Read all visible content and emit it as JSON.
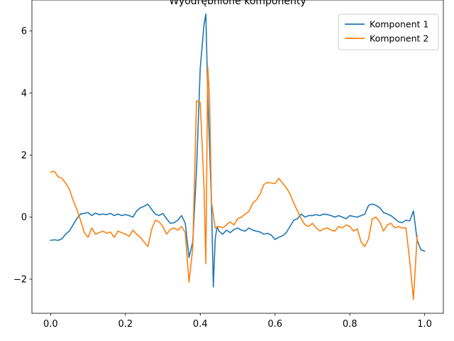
{
  "chart_data": {
    "type": "line",
    "title": "Wyodrębnione komponenty",
    "xlabel": "",
    "ylabel": "",
    "xlim": [
      -0.05,
      1.05
    ],
    "ylim": [
      -3.1,
      7.0
    ],
    "xticks": [
      0.0,
      0.2,
      0.4,
      0.6,
      0.8,
      1.0
    ],
    "xtick_labels": [
      "0.0",
      "0.2",
      "0.4",
      "0.6",
      "0.8",
      "1.0"
    ],
    "yticks": [
      -2,
      0,
      2,
      4,
      6
    ],
    "ytick_labels": [
      "−2",
      "0",
      "2",
      "4",
      "6"
    ],
    "grid": false,
    "legend_position": "top-right",
    "series": [
      {
        "name": "Komponent 1",
        "color": "#1f77b4",
        "points": [
          [
            0.0,
            -0.75
          ],
          [
            0.01,
            -0.73
          ],
          [
            0.02,
            -0.75
          ],
          [
            0.03,
            -0.7
          ],
          [
            0.04,
            -0.55
          ],
          [
            0.05,
            -0.45
          ],
          [
            0.06,
            -0.25
          ],
          [
            0.07,
            -0.05
          ],
          [
            0.08,
            0.1
          ],
          [
            0.09,
            0.12
          ],
          [
            0.1,
            0.15
          ],
          [
            0.11,
            0.05
          ],
          [
            0.12,
            0.13
          ],
          [
            0.13,
            0.08
          ],
          [
            0.14,
            0.1
          ],
          [
            0.15,
            0.08
          ],
          [
            0.16,
            0.12
          ],
          [
            0.17,
            0.05
          ],
          [
            0.18,
            0.1
          ],
          [
            0.19,
            0.05
          ],
          [
            0.2,
            0.08
          ],
          [
            0.21,
            0.05
          ],
          [
            0.22,
            0.0
          ],
          [
            0.23,
            0.2
          ],
          [
            0.24,
            0.3
          ],
          [
            0.25,
            0.35
          ],
          [
            0.26,
            0.42
          ],
          [
            0.27,
            0.25
          ],
          [
            0.28,
            0.1
          ],
          [
            0.29,
            0.05
          ],
          [
            0.3,
            0.12
          ],
          [
            0.31,
            -0.05
          ],
          [
            0.32,
            -0.2
          ],
          [
            0.33,
            -0.18
          ],
          [
            0.34,
            -0.1
          ],
          [
            0.35,
            0.05
          ],
          [
            0.36,
            -0.2
          ],
          [
            0.37,
            -1.3
          ],
          [
            0.38,
            -0.8
          ],
          [
            0.39,
            1.5
          ],
          [
            0.4,
            4.8
          ],
          [
            0.41,
            6.2
          ],
          [
            0.415,
            6.55
          ],
          [
            0.42,
            4.0
          ],
          [
            0.43,
            0.5
          ],
          [
            0.435,
            -2.25
          ],
          [
            0.44,
            -0.7
          ],
          [
            0.445,
            -0.3
          ],
          [
            0.45,
            -0.45
          ],
          [
            0.46,
            -0.55
          ],
          [
            0.47,
            -0.42
          ],
          [
            0.48,
            -0.5
          ],
          [
            0.49,
            -0.4
          ],
          [
            0.5,
            -0.35
          ],
          [
            0.51,
            -0.42
          ],
          [
            0.52,
            -0.45
          ],
          [
            0.53,
            -0.35
          ],
          [
            0.54,
            -0.42
          ],
          [
            0.55,
            -0.45
          ],
          [
            0.56,
            -0.48
          ],
          [
            0.57,
            -0.55
          ],
          [
            0.58,
            -0.52
          ],
          [
            0.59,
            -0.58
          ],
          [
            0.6,
            -0.72
          ],
          [
            0.61,
            -0.65
          ],
          [
            0.62,
            -0.6
          ],
          [
            0.63,
            -0.5
          ],
          [
            0.64,
            -0.3
          ],
          [
            0.65,
            -0.1
          ],
          [
            0.66,
            -0.05
          ],
          [
            0.67,
            0.1
          ],
          [
            0.68,
            0.0
          ],
          [
            0.69,
            0.05
          ],
          [
            0.7,
            0.05
          ],
          [
            0.71,
            0.08
          ],
          [
            0.72,
            0.05
          ],
          [
            0.73,
            0.1
          ],
          [
            0.74,
            0.08
          ],
          [
            0.75,
            0.05
          ],
          [
            0.76,
            0.0
          ],
          [
            0.77,
            0.05
          ],
          [
            0.78,
            0.0
          ],
          [
            0.79,
            -0.05
          ],
          [
            0.8,
            0.05
          ],
          [
            0.81,
            0.02
          ],
          [
            0.82,
            0.0
          ],
          [
            0.83,
            0.05
          ],
          [
            0.84,
            0.1
          ],
          [
            0.85,
            0.38
          ],
          [
            0.86,
            0.42
          ],
          [
            0.87,
            0.38
          ],
          [
            0.88,
            0.3
          ],
          [
            0.89,
            0.15
          ],
          [
            0.9,
            0.1
          ],
          [
            0.91,
            0.05
          ],
          [
            0.92,
            -0.05
          ],
          [
            0.93,
            -0.15
          ],
          [
            0.94,
            -0.18
          ],
          [
            0.95,
            -0.1
          ],
          [
            0.96,
            -0.12
          ],
          [
            0.97,
            0.2
          ],
          [
            0.98,
            -0.75
          ],
          [
            0.99,
            -1.05
          ],
          [
            1.0,
            -1.1
          ]
        ]
      },
      {
        "name": "Komponent 2",
        "color": "#ff7f0e",
        "points": [
          [
            0.0,
            1.45
          ],
          [
            0.01,
            1.48
          ],
          [
            0.02,
            1.3
          ],
          [
            0.03,
            1.25
          ],
          [
            0.04,
            1.1
          ],
          [
            0.05,
            0.9
          ],
          [
            0.06,
            0.55
          ],
          [
            0.07,
            0.25
          ],
          [
            0.08,
            -0.1
          ],
          [
            0.09,
            -0.5
          ],
          [
            0.1,
            -0.65
          ],
          [
            0.11,
            -0.35
          ],
          [
            0.12,
            -0.55
          ],
          [
            0.13,
            -0.5
          ],
          [
            0.14,
            -0.45
          ],
          [
            0.15,
            -0.52
          ],
          [
            0.16,
            -0.48
          ],
          [
            0.17,
            -0.65
          ],
          [
            0.18,
            -0.45
          ],
          [
            0.19,
            -0.5
          ],
          [
            0.2,
            -0.55
          ],
          [
            0.21,
            -0.62
          ],
          [
            0.22,
            -0.42
          ],
          [
            0.23,
            -0.55
          ],
          [
            0.24,
            -0.65
          ],
          [
            0.25,
            -0.8
          ],
          [
            0.26,
            -0.95
          ],
          [
            0.27,
            -0.4
          ],
          [
            0.28,
            -0.1
          ],
          [
            0.29,
            -0.15
          ],
          [
            0.3,
            -0.3
          ],
          [
            0.31,
            -0.55
          ],
          [
            0.32,
            -0.4
          ],
          [
            0.33,
            -0.35
          ],
          [
            0.34,
            -0.42
          ],
          [
            0.35,
            -0.3
          ],
          [
            0.36,
            -0.5
          ],
          [
            0.37,
            -2.1
          ],
          [
            0.38,
            -1.0
          ],
          [
            0.39,
            3.75
          ],
          [
            0.4,
            3.7
          ],
          [
            0.41,
            1.0
          ],
          [
            0.415,
            -1.5
          ],
          [
            0.42,
            4.85
          ],
          [
            0.425,
            3.8
          ],
          [
            0.43,
            0.5
          ],
          [
            0.44,
            -0.35
          ],
          [
            0.45,
            -0.3
          ],
          [
            0.46,
            -0.35
          ],
          [
            0.47,
            -0.25
          ],
          [
            0.48,
            -0.15
          ],
          [
            0.49,
            -0.25
          ],
          [
            0.5,
            -0.05
          ],
          [
            0.51,
            0.0
          ],
          [
            0.52,
            0.1
          ],
          [
            0.53,
            0.18
          ],
          [
            0.54,
            0.45
          ],
          [
            0.55,
            0.55
          ],
          [
            0.56,
            0.75
          ],
          [
            0.57,
            1.05
          ],
          [
            0.58,
            1.12
          ],
          [
            0.59,
            1.1
          ],
          [
            0.6,
            1.08
          ],
          [
            0.61,
            1.25
          ],
          [
            0.62,
            1.1
          ],
          [
            0.63,
            0.95
          ],
          [
            0.64,
            0.75
          ],
          [
            0.65,
            0.45
          ],
          [
            0.66,
            0.2
          ],
          [
            0.67,
            -0.05
          ],
          [
            0.68,
            -0.25
          ],
          [
            0.69,
            -0.3
          ],
          [
            0.7,
            -0.2
          ],
          [
            0.71,
            -0.35
          ],
          [
            0.72,
            -0.45
          ],
          [
            0.73,
            -0.38
          ],
          [
            0.74,
            -0.35
          ],
          [
            0.75,
            -0.42
          ],
          [
            0.76,
            -0.45
          ],
          [
            0.77,
            -0.3
          ],
          [
            0.78,
            -0.35
          ],
          [
            0.79,
            -0.25
          ],
          [
            0.8,
            -0.3
          ],
          [
            0.81,
            -0.45
          ],
          [
            0.82,
            -0.38
          ],
          [
            0.83,
            -0.8
          ],
          [
            0.84,
            -0.95
          ],
          [
            0.85,
            -0.7
          ],
          [
            0.86,
            -0.05
          ],
          [
            0.87,
            0.0
          ],
          [
            0.88,
            -0.15
          ],
          [
            0.89,
            -0.45
          ],
          [
            0.9,
            -0.25
          ],
          [
            0.91,
            -0.2
          ],
          [
            0.92,
            -0.35
          ],
          [
            0.93,
            -0.3
          ],
          [
            0.94,
            -0.35
          ],
          [
            0.95,
            -0.35
          ],
          [
            0.96,
            -1.4
          ],
          [
            0.97,
            -2.65
          ],
          [
            0.98,
            -0.6
          ]
        ]
      }
    ]
  }
}
